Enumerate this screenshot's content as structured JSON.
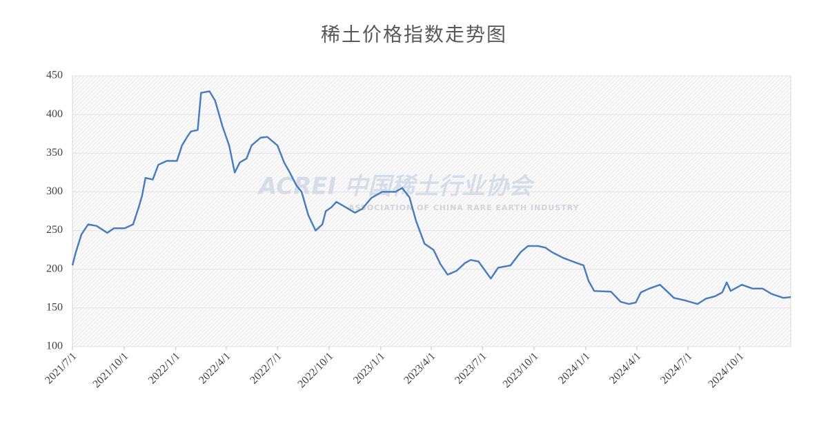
{
  "chart_data": {
    "type": "line",
    "title": "稀土价格指数走势图",
    "watermark": "ACREI 中国稀土行业协会",
    "watermark_subtitle": "ASSOCIATION OF CHINA RARE EARTH INDUSTRY",
    "x": [
      "2021/7/1",
      "2021/7/7",
      "2021/7/17",
      "2021/7/29",
      "2021/8/13",
      "2021/9/1",
      "2021/9/13",
      "2021/10/2",
      "2021/10/17",
      "2021/10/27",
      "2021/11/2",
      "2021/11/8",
      "2021/11/21",
      "2021/12/1",
      "2021/12/16",
      "2022/1/3",
      "2022/1/12",
      "2022/1/22",
      "2022/1/28",
      "2022/2/9",
      "2022/2/15",
      "2022/3/2",
      "2022/3/12",
      "2022/3/25",
      "2022/4/6",
      "2022/4/16",
      "2022/4/25",
      "2022/5/7",
      "2022/5/16",
      "2022/6/1",
      "2022/6/13",
      "2022/7/1",
      "2022/7/13",
      "2022/7/23",
      "2022/8/4",
      "2022/8/13",
      "2022/8/25",
      "2022/9/7",
      "2022/9/19",
      "2022/9/25",
      "2022/10/5",
      "2022/10/14",
      "2022/10/26",
      "2022/11/16",
      "2022/11/29",
      "2022/12/15",
      "2023/1/3",
      "2023/1/27",
      "2023/2/8",
      "2023/2/21",
      "2023/3/5",
      "2023/3/20",
      "2023/4/5",
      "2023/4/17",
      "2023/4/30",
      "2023/5/16",
      "2023/5/31",
      "2023/6/10",
      "2023/6/24",
      "2023/7/7",
      "2023/7/16",
      "2023/7/29",
      "2023/8/20",
      "2023/9/7",
      "2023/9/20",
      "2023/10/8",
      "2023/10/21",
      "2023/11/2",
      "2023/11/21",
      "2023/12/16",
      "2023/12/28",
      "2024/1/6",
      "2024/1/16",
      "2024/2/15",
      "2024/3/3",
      "2024/3/18",
      "2024/3/30",
      "2024/4/8",
      "2024/4/23",
      "2024/5/12",
      "2024/5/24",
      "2024/6/6",
      "2024/6/24",
      "2024/7/18",
      "2024/8/2",
      "2024/8/18",
      "2024/8/31",
      "2024/9/8",
      "2024/9/15",
      "2024/10/5",
      "2024/10/24",
      "2024/11/11",
      "2024/11/27",
      "2024/12/18",
      "2024/12/31"
    ],
    "series": [
      {
        "name": "稀土价格指数",
        "color": "#4a7ebb",
        "values": [
          205,
          222,
          245,
          258,
          256,
          247,
          253,
          253,
          258,
          280,
          295,
          318,
          316,
          335,
          340,
          340,
          360,
          372,
          378,
          380,
          428,
          430,
          418,
          385,
          360,
          325,
          338,
          343,
          360,
          370,
          371,
          360,
          338,
          325,
          308,
          300,
          270,
          250,
          258,
          275,
          280,
          287,
          282,
          273,
          278,
          292,
          300,
          300,
          305,
          293,
          262,
          233,
          225,
          207,
          193,
          198,
          208,
          212,
          210,
          197,
          188,
          202,
          205,
          222,
          230,
          230,
          228,
          222,
          215,
          208,
          205,
          185,
          172,
          171,
          158,
          155,
          157,
          170,
          175,
          180,
          172,
          163,
          160,
          155,
          162,
          165,
          170,
          183,
          172,
          180,
          175,
          175,
          168,
          163,
          164
        ]
      }
    ],
    "xlim": [
      "2021/7/1",
      "2024/12/31"
    ],
    "xticks": [
      "2021/7/1",
      "2021/10/1",
      "2022/1/1",
      "2022/4/1",
      "2022/7/1",
      "2022/10/1",
      "2023/1/1",
      "2023/4/1",
      "2023/7/1",
      "2023/10/1",
      "2024/1/1",
      "2024/4/1",
      "2024/7/1",
      "2024/10/1"
    ],
    "ylim": [
      100,
      450
    ],
    "yticks": [
      100,
      150,
      200,
      250,
      300,
      350,
      400,
      450
    ],
    "grid": true
  }
}
